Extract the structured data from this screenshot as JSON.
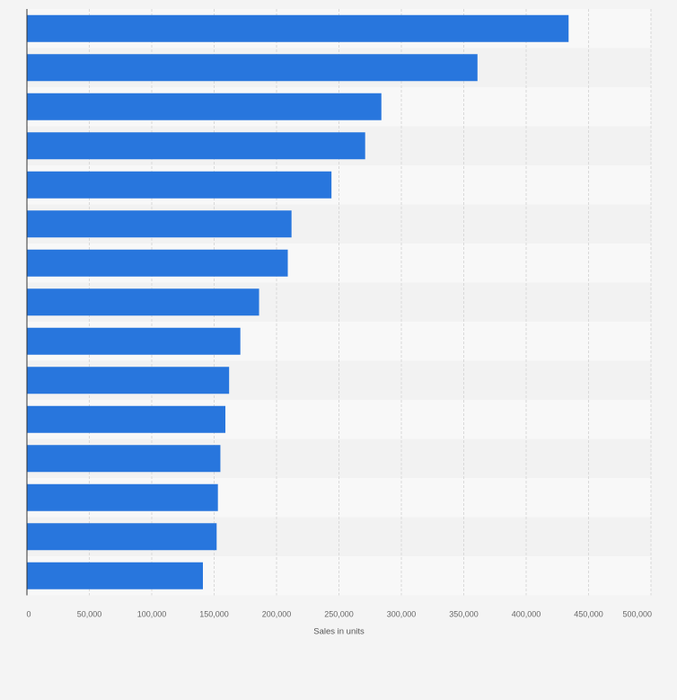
{
  "chart_data": {
    "type": "bar",
    "orientation": "horizontal",
    "xlabel": "Sales in units",
    "xlim": [
      0,
      500000
    ],
    "x_ticks": [
      0,
      50000,
      100000,
      150000,
      200000,
      250000,
      300000,
      350000,
      400000,
      450000,
      500000
    ],
    "x_tick_labels": [
      "0",
      "50,000",
      "100,000",
      "150,000",
      "200,000",
      "250,000",
      "300,000",
      "350,000",
      "400,000",
      "450,000",
      "500,000"
    ],
    "values": [
      434000,
      361000,
      284000,
      271000,
      244000,
      212000,
      209000,
      186000,
      171000,
      162000,
      159000,
      155000,
      153000,
      152000,
      141000
    ],
    "grid": true,
    "colors": {
      "bar": "#2876dd",
      "band_light": "#f8f8f8",
      "band_dark": "#f2f2f2",
      "page": "#f4f4f4",
      "grid": "#d9d9d9",
      "axis": "#333333"
    }
  }
}
